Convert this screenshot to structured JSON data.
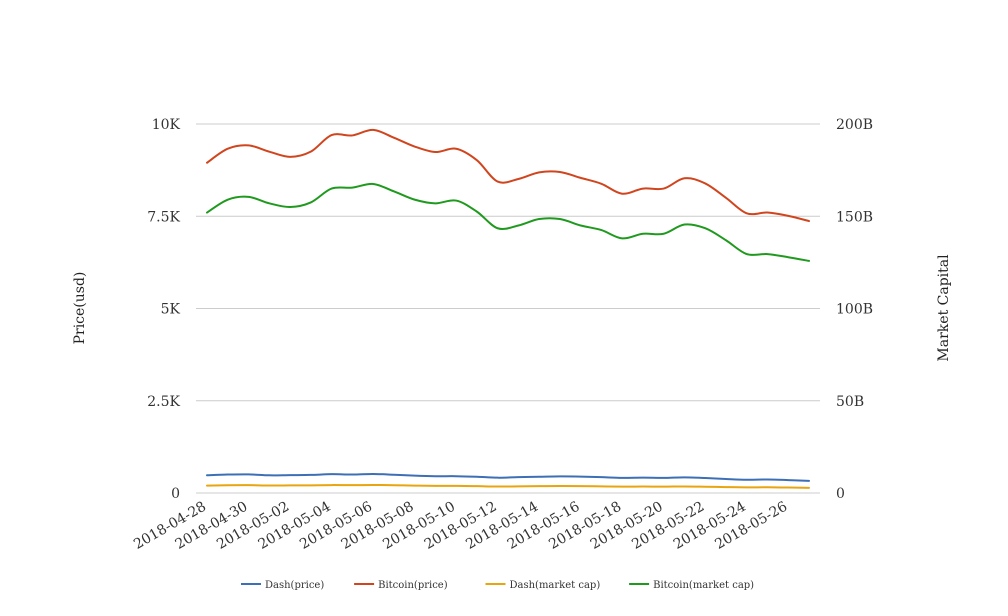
{
  "chart_data": {
    "type": "line",
    "title": "",
    "x": [
      "2018-04-28",
      "2018-04-29",
      "2018-04-30",
      "2018-05-01",
      "2018-05-02",
      "2018-05-03",
      "2018-05-04",
      "2018-05-05",
      "2018-05-06",
      "2018-05-07",
      "2018-05-08",
      "2018-05-09",
      "2018-05-10",
      "2018-05-11",
      "2018-05-12",
      "2018-05-13",
      "2018-05-14",
      "2018-05-15",
      "2018-05-16",
      "2018-05-17",
      "2018-05-18",
      "2018-05-19",
      "2018-05-20",
      "2018-05-21",
      "2018-05-22",
      "2018-05-23",
      "2018-05-24",
      "2018-05-25",
      "2018-05-26",
      "2018-05-27"
    ],
    "x_tick_labels": [
      "2018-04-28",
      "2018-04-30",
      "2018-05-02",
      "2018-05-04",
      "2018-05-06",
      "2018-05-08",
      "2018-05-10",
      "2018-05-12",
      "2018-05-14",
      "2018-05-16",
      "2018-05-18",
      "2018-05-20",
      "2018-05-22",
      "2018-05-24",
      "2018-05-26"
    ],
    "y_left": {
      "label": "Price(usd)",
      "range": [
        0,
        10000
      ],
      "ticks": [
        0,
        2500,
        5000,
        7500,
        10000
      ],
      "tick_labels": [
        "0",
        "2.5K",
        "5K",
        "7.5K",
        "10K"
      ]
    },
    "y_right": {
      "label": "Market Capital",
      "range": [
        0,
        200000000000
      ],
      "ticks": [
        0,
        50000000000,
        100000000000,
        150000000000,
        200000000000
      ],
      "tick_labels": [
        "0",
        "50B",
        "100B",
        "150B",
        "200B"
      ]
    },
    "grid": true,
    "legend_position": "bottom-center",
    "series": [
      {
        "name": "Dash(price)",
        "axis": "left",
        "color": "#3d6fb6",
        "values": [
          480,
          500,
          505,
          480,
          485,
          490,
          510,
          500,
          515,
          495,
          470,
          455,
          455,
          440,
          415,
          430,
          440,
          450,
          445,
          430,
          410,
          415,
          410,
          425,
          405,
          380,
          360,
          365,
          350,
          330
        ]
      },
      {
        "name": "Bitcoin(price)",
        "axis": "left",
        "color": "#d1451e",
        "values": [
          8950,
          9330,
          9420,
          9250,
          9110,
          9250,
          9700,
          9690,
          9840,
          9630,
          9390,
          9240,
          9330,
          9020,
          8440,
          8510,
          8690,
          8700,
          8540,
          8380,
          8110,
          8250,
          8250,
          8530,
          8390,
          8000,
          7580,
          7600,
          7510,
          7370
        ]
      },
      {
        "name": "Dash(market cap)",
        "axis": "right",
        "color": "#e8a50f",
        "values": [
          4000000000,
          4200000000,
          4250000000,
          4050000000,
          4100000000,
          4150000000,
          4300000000,
          4250000000,
          4350000000,
          4200000000,
          4000000000,
          3850000000,
          3850000000,
          3700000000,
          3500000000,
          3600000000,
          3700000000,
          3800000000,
          3750000000,
          3600000000,
          3450000000,
          3500000000,
          3450000000,
          3550000000,
          3400000000,
          3200000000,
          3050000000,
          3100000000,
          2950000000,
          2800000000
        ]
      },
      {
        "name": "Bitcoin(market cap)",
        "axis": "right",
        "color": "#1f9a1f",
        "values": [
          152000000000,
          159000000000,
          160500000000,
          157000000000,
          155000000000,
          157500000000,
          165000000000,
          165500000000,
          167500000000,
          163500000000,
          159000000000,
          157000000000,
          158500000000,
          152500000000,
          143500000000,
          145000000000,
          148500000000,
          148500000000,
          145000000000,
          142500000000,
          138000000000,
          140500000000,
          140500000000,
          145500000000,
          143500000000,
          137000000000,
          129500000000,
          129500000000,
          127800000000,
          125800000000
        ]
      }
    ]
  }
}
